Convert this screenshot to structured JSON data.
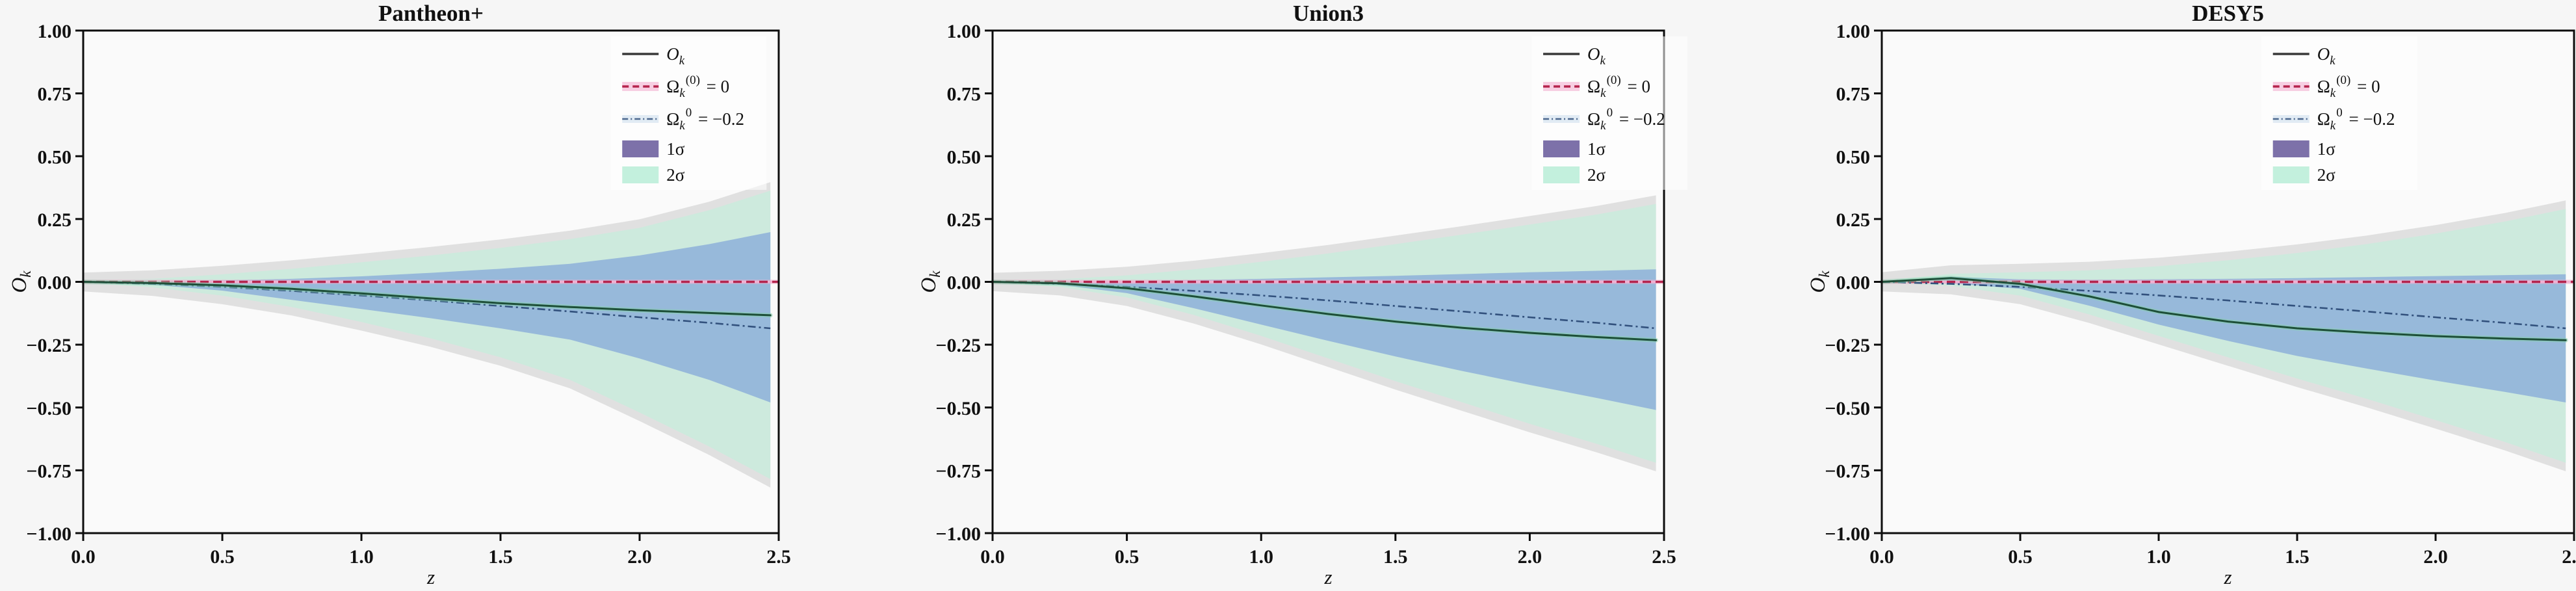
{
  "figure": {
    "background": "#f6f6f6",
    "plot_background": "#fafafa",
    "spine_color": "#0d0d0d",
    "text_color": "#111111"
  },
  "shared": {
    "xlabel": "z",
    "ylabel": {
      "base": "O",
      "sub": "k"
    },
    "xlim": [
      0,
      2.5
    ],
    "ylim": [
      -1.0,
      1.0
    ],
    "xticks": {
      "values": [
        0.0,
        0.5,
        1.0,
        1.5,
        2.0,
        2.5
      ],
      "labels": [
        "0.0",
        "0.5",
        "1.0",
        "1.5",
        "2.0",
        "2.5"
      ]
    },
    "yticks": {
      "values": [
        1.0,
        0.75,
        0.5,
        0.25,
        0.0,
        -0.25,
        -0.5,
        -0.75,
        -1.0
      ],
      "labels": [
        "1.00",
        "0.75",
        "0.50",
        "0.25",
        "0.00",
        "−0.25",
        "−0.50",
        "−0.75",
        "−1.00"
      ]
    },
    "legend": [
      {
        "name": "ok-line",
        "style": "line-solid",
        "label": {
          "base": "O",
          "sub": "k",
          "italic": true,
          "suffix": ""
        }
      },
      {
        "name": "omega-zero-line",
        "style": "line-dashed-red",
        "label": {
          "base": "Ω",
          "sub": "k",
          "sup": "(0)",
          "suffix": " = 0"
        }
      },
      {
        "name": "omega-neg02-line",
        "style": "line-dashdot",
        "label": {
          "base": "Ω",
          "sub": "k",
          "sup": "0",
          "suffix": " = −0.2"
        }
      },
      {
        "name": "band-1sigma",
        "style": "patch-1sigma",
        "label": {
          "base": "1σ",
          "suffix": ""
        }
      },
      {
        "name": "band-2sigma",
        "style": "patch-2sigma",
        "label": {
          "base": "2σ",
          "suffix": ""
        }
      }
    ],
    "colors": {
      "band1_plot": "#97b9da",
      "band2_plot": "#cdeadd",
      "band_outline": "#e0e0e0",
      "band1_legend": "#7d71a9",
      "band2_legend": "#c3f0dd",
      "zero_line": "#b5244d",
      "zero_line_under": "#f3afd0",
      "model_line": "#32517d",
      "model_line_under": "#cfe0ef",
      "ok_line": "#1d4f38",
      "ok_halo": "#86cfab",
      "legend_solid_sample": "#3a3a3a"
    }
  },
  "chart_data": [
    {
      "type": "line",
      "title": "Pantheon+",
      "x": [
        0,
        0.25,
        0.5,
        0.75,
        1.0,
        1.25,
        1.5,
        1.75,
        2.0,
        2.25,
        2.5
      ],
      "series": [
        {
          "name": "O_k measured",
          "legend": "ok-line",
          "values": [
            0,
            -0.005,
            -0.014,
            -0.028,
            -0.046,
            -0.066,
            -0.085,
            -0.1,
            -0.113,
            -0.124,
            -0.133
          ]
        },
        {
          "name": "Omega_k(0)=0 flat model",
          "legend": "omega-zero-line",
          "constant": 0
        },
        {
          "name": "Omega_k0=-0.2 model",
          "legend": "omega-neg02-line",
          "values": [
            0,
            -0.008,
            -0.02,
            -0.036,
            -0.054,
            -0.074,
            -0.096,
            -0.118,
            -0.141,
            -0.163,
            -0.185
          ]
        }
      ],
      "bands": [
        {
          "name": "1sigma",
          "upper": [
            0.001,
            0.003,
            0.006,
            0.012,
            0.022,
            0.036,
            0.052,
            0.072,
            0.105,
            0.15,
            0.198
          ],
          "lower": [
            -0.002,
            -0.012,
            -0.035,
            -0.072,
            -0.108,
            -0.145,
            -0.185,
            -0.23,
            -0.305,
            -0.39,
            -0.48
          ]
        },
        {
          "name": "2sigma",
          "upper": [
            0.003,
            0.012,
            0.03,
            0.052,
            0.078,
            0.105,
            0.135,
            0.17,
            0.215,
            0.285,
            0.363
          ],
          "lower": [
            -0.004,
            -0.022,
            -0.055,
            -0.1,
            -0.16,
            -0.225,
            -0.3,
            -0.39,
            -0.52,
            -0.655,
            -0.785
          ]
        }
      ]
    },
    {
      "type": "line",
      "title": "Union3",
      "x": [
        0,
        0.25,
        0.5,
        0.75,
        1.0,
        1.25,
        1.5,
        1.75,
        2.0,
        2.25,
        2.5
      ],
      "series": [
        {
          "name": "O_k measured",
          "legend": "ok-line",
          "values": [
            0,
            -0.006,
            -0.025,
            -0.058,
            -0.094,
            -0.128,
            -0.158,
            -0.183,
            -0.203,
            -0.22,
            -0.232
          ]
        },
        {
          "name": "Omega_k(0)=0 flat model",
          "legend": "omega-zero-line",
          "constant": 0
        },
        {
          "name": "Omega_k0=-0.2 model",
          "legend": "omega-neg02-line",
          "values": [
            0,
            -0.008,
            -0.02,
            -0.036,
            -0.054,
            -0.074,
            -0.096,
            -0.118,
            -0.141,
            -0.163,
            -0.185
          ]
        }
      ],
      "bands": [
        {
          "name": "1sigma",
          "upper": [
            0.001,
            0.002,
            0.004,
            0.007,
            0.012,
            0.018,
            0.024,
            0.031,
            0.038,
            0.044,
            0.05
          ],
          "lower": [
            -0.002,
            -0.012,
            -0.045,
            -0.105,
            -0.17,
            -0.235,
            -0.297,
            -0.355,
            -0.41,
            -0.462,
            -0.51
          ]
        },
        {
          "name": "2sigma",
          "upper": [
            0.002,
            0.01,
            0.026,
            0.05,
            0.08,
            0.113,
            0.15,
            0.188,
            0.228,
            0.268,
            0.31
          ],
          "lower": [
            -0.003,
            -0.02,
            -0.062,
            -0.132,
            -0.215,
            -0.305,
            -0.395,
            -0.48,
            -0.565,
            -0.645,
            -0.72
          ]
        }
      ]
    },
    {
      "type": "line",
      "title": "DESY5",
      "x": [
        0,
        0.25,
        0.5,
        0.75,
        1.0,
        1.25,
        1.5,
        1.75,
        2.0,
        2.25,
        2.5
      ],
      "series": [
        {
          "name": "O_k measured",
          "legend": "ok-line",
          "values": [
            0,
            0.015,
            -0.008,
            -0.058,
            -0.12,
            -0.158,
            -0.185,
            -0.202,
            -0.216,
            -0.226,
            -0.232
          ]
        },
        {
          "name": "Omega_k(0)=0 flat model",
          "legend": "omega-zero-line",
          "constant": 0
        },
        {
          "name": "Omega_k0=-0.2 model",
          "legend": "omega-neg02-line",
          "values": [
            0,
            -0.008,
            -0.02,
            -0.036,
            -0.054,
            -0.074,
            -0.096,
            -0.118,
            -0.141,
            -0.163,
            -0.185
          ]
        }
      ],
      "bands": [
        {
          "name": "1sigma",
          "upper": [
            0.002,
            0.02,
            0.01,
            0.008,
            0.01,
            0.012,
            0.015,
            0.019,
            0.023,
            0.027,
            0.03
          ],
          "lower": [
            -0.002,
            -0.006,
            -0.028,
            -0.095,
            -0.17,
            -0.235,
            -0.295,
            -0.345,
            -0.393,
            -0.438,
            -0.48
          ]
        },
        {
          "name": "2sigma",
          "upper": [
            0.004,
            0.032,
            0.038,
            0.046,
            0.062,
            0.086,
            0.115,
            0.15,
            0.192,
            0.24,
            0.29
          ],
          "lower": [
            -0.004,
            -0.016,
            -0.055,
            -0.13,
            -0.215,
            -0.3,
            -0.385,
            -0.465,
            -0.55,
            -0.637,
            -0.72
          ]
        }
      ]
    }
  ]
}
